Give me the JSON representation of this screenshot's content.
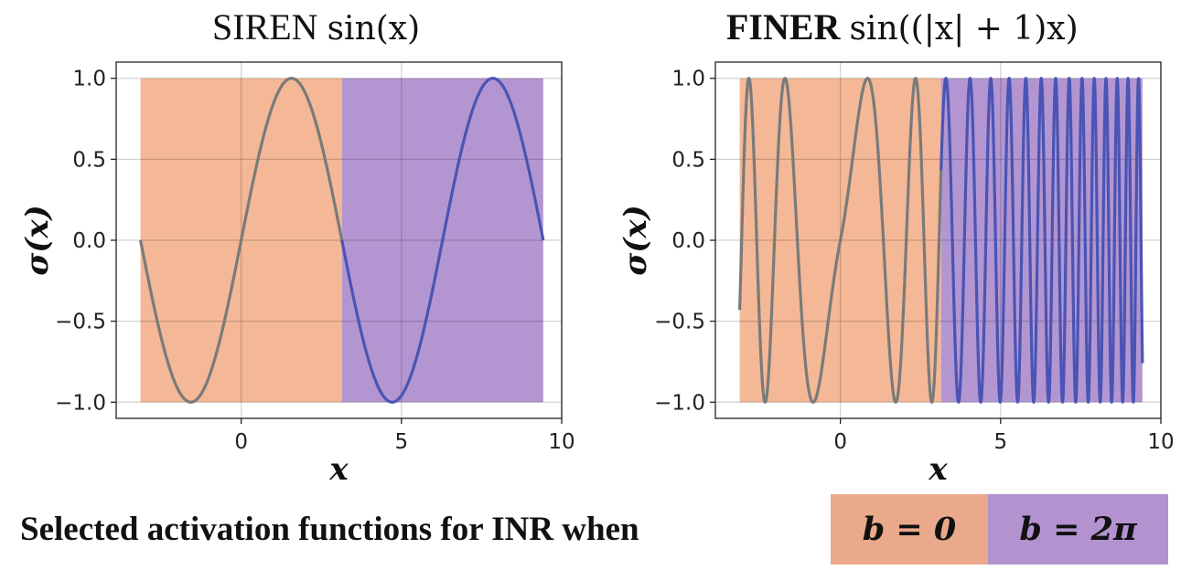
{
  "chart_data": [
    {
      "type": "line",
      "title_name": "SIREN",
      "title_func": "sin(x)",
      "function": "sin(x)",
      "xlabel": "x",
      "ylabel": "σ(x)",
      "xlim": [
        -3.9,
        10.0
      ],
      "ylim": [
        -1.1,
        1.1
      ],
      "x_range": [
        -3.14159,
        9.42478
      ],
      "xticks": [
        0,
        5,
        10
      ],
      "yticks": [
        1.0,
        0.5,
        0.0,
        -0.5,
        -1.0
      ],
      "xtick_labels": [
        "0",
        "5",
        "10"
      ],
      "ytick_labels": [
        "1.0",
        "0.5",
        "0.0",
        "−0.5",
        "−1.0"
      ],
      "grid": true,
      "regions": [
        {
          "name": "b = 0",
          "x_start": -3.14159,
          "x_end": 3.14159,
          "color": "#f4b896"
        },
        {
          "name": "b = 2π",
          "x_start": 3.14159,
          "x_end": 9.42478,
          "color": "#b396d1"
        }
      ],
      "series": [
        {
          "x_start": -3.14159,
          "x_end": 3.14159,
          "color": "#7a7a7a"
        },
        {
          "x_start": 3.14159,
          "x_end": 9.42478,
          "color": "#4a54b4"
        }
      ]
    },
    {
      "type": "line",
      "title_name": "FINER",
      "title_func": "sin((|x| + 1)x)",
      "function": "sin((|x|+1)x)",
      "xlabel": "x",
      "ylabel": "σ(x)",
      "xlim": [
        -3.9,
        10.0
      ],
      "ylim": [
        -1.1,
        1.1
      ],
      "x_range": [
        -3.14159,
        9.42478
      ],
      "xticks": [
        0,
        5,
        10
      ],
      "yticks": [
        1.0,
        0.5,
        0.0,
        -0.5,
        -1.0
      ],
      "xtick_labels": [
        "0",
        "5",
        "10"
      ],
      "ytick_labels": [
        "1.0",
        "0.5",
        "0.0",
        "−0.5",
        "−1.0"
      ],
      "grid": true,
      "regions": [
        {
          "name": "b = 0",
          "x_start": -3.14159,
          "x_end": 3.14159,
          "color": "#f4b896"
        },
        {
          "name": "b = 2π",
          "x_start": 3.14159,
          "x_end": 9.42478,
          "color": "#b396d1"
        }
      ],
      "series": [
        {
          "x_start": -3.14159,
          "x_end": 3.14159,
          "color": "#7a7a7a"
        },
        {
          "x_start": 3.14159,
          "x_end": 9.42478,
          "color": "#4a54b4"
        }
      ]
    }
  ],
  "caption": "Selected activation functions for INR when",
  "legend": [
    {
      "label": "b = 0",
      "color": "#eaa98a"
    },
    {
      "label": "b = 2π",
      "color": "#b392d0"
    }
  ]
}
